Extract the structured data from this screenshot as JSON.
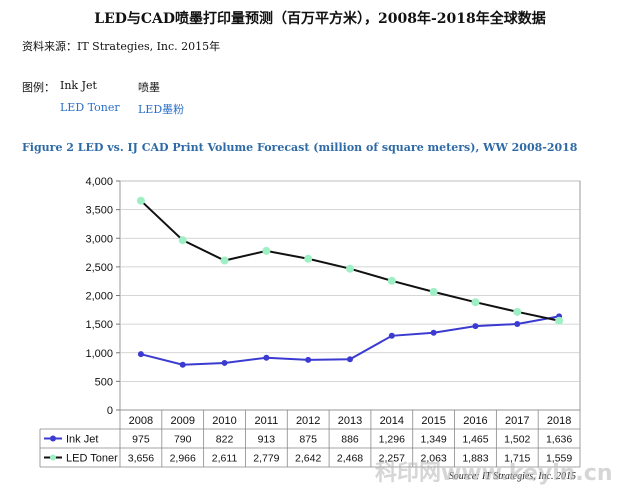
{
  "header": {
    "title": "LED与CAD喷墨打印量预测（百万平方米），2008年-2018年全球数据",
    "source": "资料来源：IT Strategies, Inc. 2015年"
  },
  "legend_box": {
    "label": "图例：",
    "inkjet_en": "Ink Jet",
    "inkjet_zh": "喷墨",
    "led_en": "LED Toner",
    "led_zh": "LED墨粉"
  },
  "figure_title": "Figure 2   LED vs. IJ CAD Print Volume Forecast (million of square meters), WW 2008-2018",
  "watermark": "科印网www.keyin.cn",
  "chart_data": {
    "type": "line",
    "categories": [
      "2008",
      "2009",
      "2010",
      "2011",
      "2012",
      "2013",
      "2014",
      "2015",
      "2016",
      "2017",
      "2018"
    ],
    "yticks": [
      "0",
      "500",
      "1,000",
      "1,500",
      "2,000",
      "2,500",
      "3,000",
      "3,500",
      "4,000"
    ],
    "ylim": [
      0,
      4000
    ],
    "grid": true,
    "series": [
      {
        "name": "Ink Jet",
        "values": [
          975,
          790,
          822,
          913,
          875,
          886,
          1296,
          1349,
          1465,
          1502,
          1636
        ],
        "labels": [
          "975",
          "790",
          "822",
          "913",
          "875",
          "886",
          "1,296",
          "1,349",
          "1,465",
          "1,502",
          "1,636"
        ],
        "color": "#3b3bd1",
        "marker_color": "#3b3bd1"
      },
      {
        "name": "LED Toner",
        "values": [
          3656,
          2966,
          2611,
          2779,
          2642,
          2468,
          2257,
          2063,
          1883,
          1715,
          1559
        ],
        "labels": [
          "3,656",
          "2,966",
          "2,611",
          "2,779",
          "2,642",
          "2,468",
          "2,257",
          "2,063",
          "1,883",
          "1,715",
          "1,559"
        ],
        "color": "#111111",
        "marker_color": "#9ef0c4"
      }
    ],
    "table_note": "Source: IT Strategies, Inc. 2015"
  }
}
